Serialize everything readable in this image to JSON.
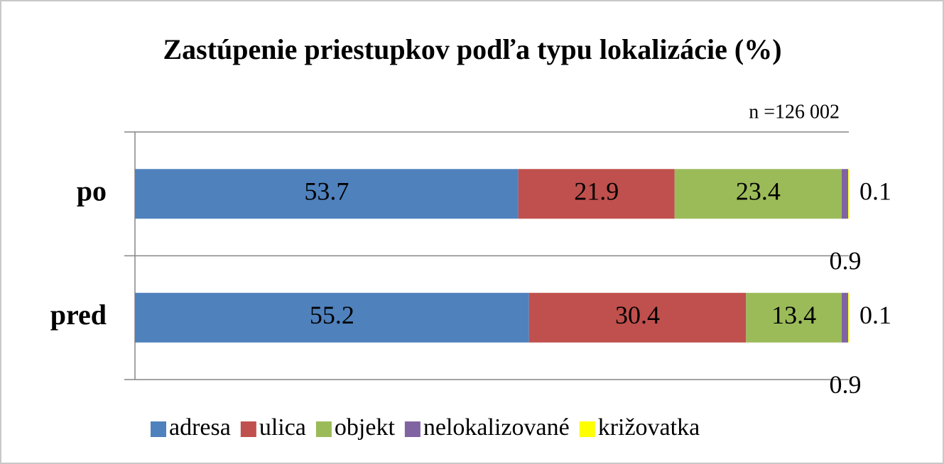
{
  "chart_data": {
    "type": "stacked-bar-horizontal",
    "title": "Zastúpenie priestupkov podľa typu lokalizácie (%)",
    "annotation": "n =126 002",
    "categories": [
      "po",
      "pred"
    ],
    "series": [
      {
        "name": "adresa",
        "color": "#4f81bd",
        "values": [
          53.7,
          55.2
        ]
      },
      {
        "name": "ulica",
        "color": "#c0504d",
        "values": [
          21.9,
          30.4
        ]
      },
      {
        "name": "objekt",
        "color": "#9bbb59",
        "values": [
          23.4,
          13.4
        ]
      },
      {
        "name": "nelokalizované",
        "color": "#8064a2",
        "values": [
          0.9,
          0.9
        ]
      },
      {
        "name": "križovatka",
        "color": "#ffff00",
        "values": [
          0.1,
          0.1
        ]
      }
    ],
    "xlim": [
      0,
      100
    ],
    "legend": "bottom"
  }
}
